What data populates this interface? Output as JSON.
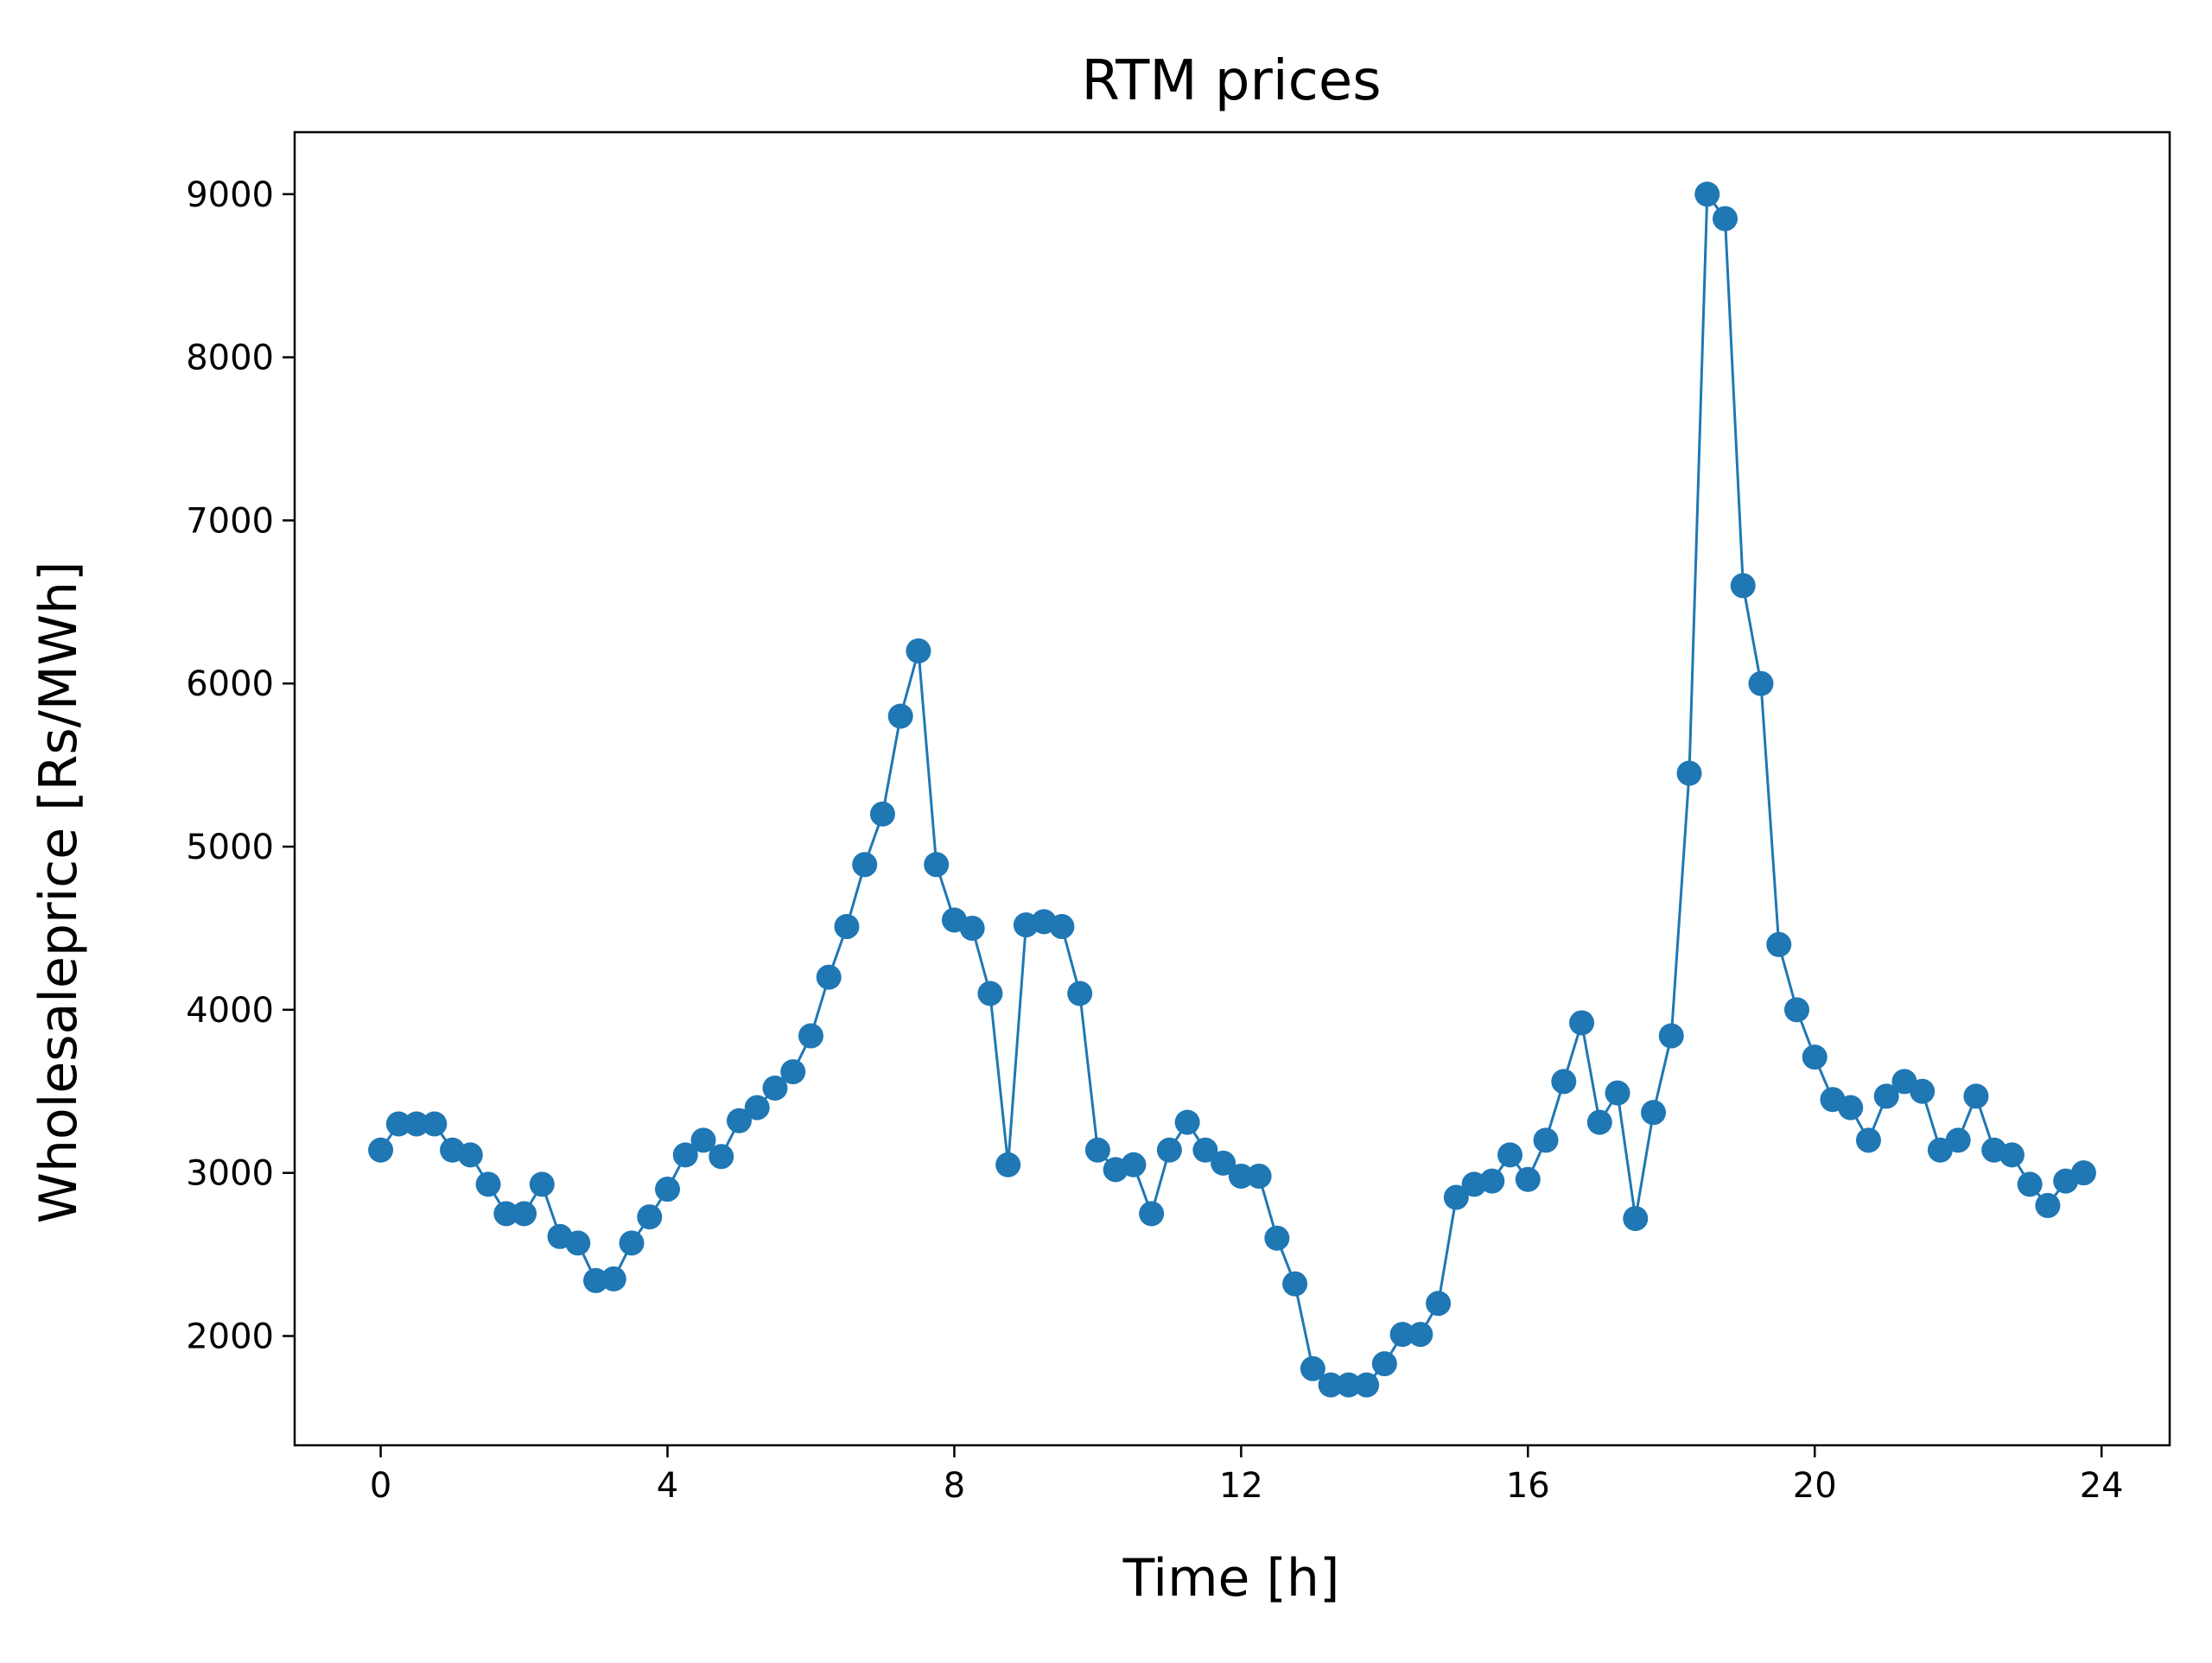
{
  "chart_data": {
    "type": "line",
    "title": "RTM prices",
    "xlabel": "Time [h]",
    "ylabel": "Wholesaleprice [Rs/MWh]",
    "xlim": [
      -1.2,
      24.95
    ],
    "ylim": [
      1330,
      9380
    ],
    "xticks": [
      0,
      4,
      8,
      12,
      16,
      20,
      24
    ],
    "yticks": [
      2000,
      3000,
      4000,
      5000,
      6000,
      7000,
      8000,
      9000
    ],
    "grid": false,
    "legend": "none",
    "marker": "circle",
    "color": "#1f77b4",
    "series": [
      {
        "x": [
          0,
          0.25,
          0.5,
          0.75,
          1,
          1.25,
          1.5,
          1.75,
          2,
          2.25,
          2.5,
          2.75,
          3,
          3.25,
          3.5,
          3.75,
          4,
          4.25,
          4.5,
          4.75,
          5,
          5.25,
          5.5,
          5.75,
          6,
          6.25,
          6.5,
          6.75,
          7,
          7.25,
          7.5,
          7.75,
          8,
          8.25,
          8.5,
          8.75,
          9,
          9.25,
          9.5,
          9.75,
          10,
          10.25,
          10.5,
          10.75,
          11,
          11.25,
          11.5,
          11.75,
          12,
          12.25,
          12.5,
          12.75,
          13,
          13.25,
          13.5,
          13.75,
          14,
          14.25,
          14.5,
          14.75,
          15,
          15.25,
          15.5,
          15.75,
          16,
          16.25,
          16.5,
          16.75,
          17,
          17.25,
          17.5,
          17.75,
          18,
          18.25,
          18.5,
          18.75,
          19,
          19.25,
          19.5,
          19.75,
          20,
          20.25,
          20.5,
          20.75,
          21,
          21.25,
          21.5,
          21.75,
          22,
          22.25,
          22.5,
          22.75,
          23,
          23.25,
          23.5,
          23.75
        ],
        "y": [
          3140,
          3300,
          3300,
          3300,
          3140,
          3110,
          2930,
          2750,
          2750,
          2930,
          2610,
          2570,
          2340,
          2350,
          2570,
          2730,
          2900,
          3110,
          3200,
          3100,
          3320,
          3400,
          3520,
          3620,
          3840,
          4200,
          4510,
          4890,
          5200,
          5800,
          6200,
          4890,
          4550,
          4500,
          4100,
          3050,
          4520,
          4540,
          4510,
          4100,
          3140,
          3020,
          3050,
          2750,
          3140,
          3310,
          3140,
          3060,
          2980,
          2980,
          2600,
          2320,
          1800,
          1700,
          1700,
          1700,
          1830,
          2010,
          2010,
          2200,
          2850,
          2930,
          2950,
          3110,
          2960,
          3200,
          3560,
          3920,
          3310,
          3490,
          2720,
          3370,
          3840,
          5450,
          9000,
          8850,
          6600,
          6000,
          4400,
          4000,
          3710,
          3450,
          3400,
          3200,
          3470,
          3560,
          3500,
          3140,
          3200,
          3470,
          3140,
          3110,
          2930,
          2800,
          2950,
          3000
        ]
      }
    ]
  }
}
